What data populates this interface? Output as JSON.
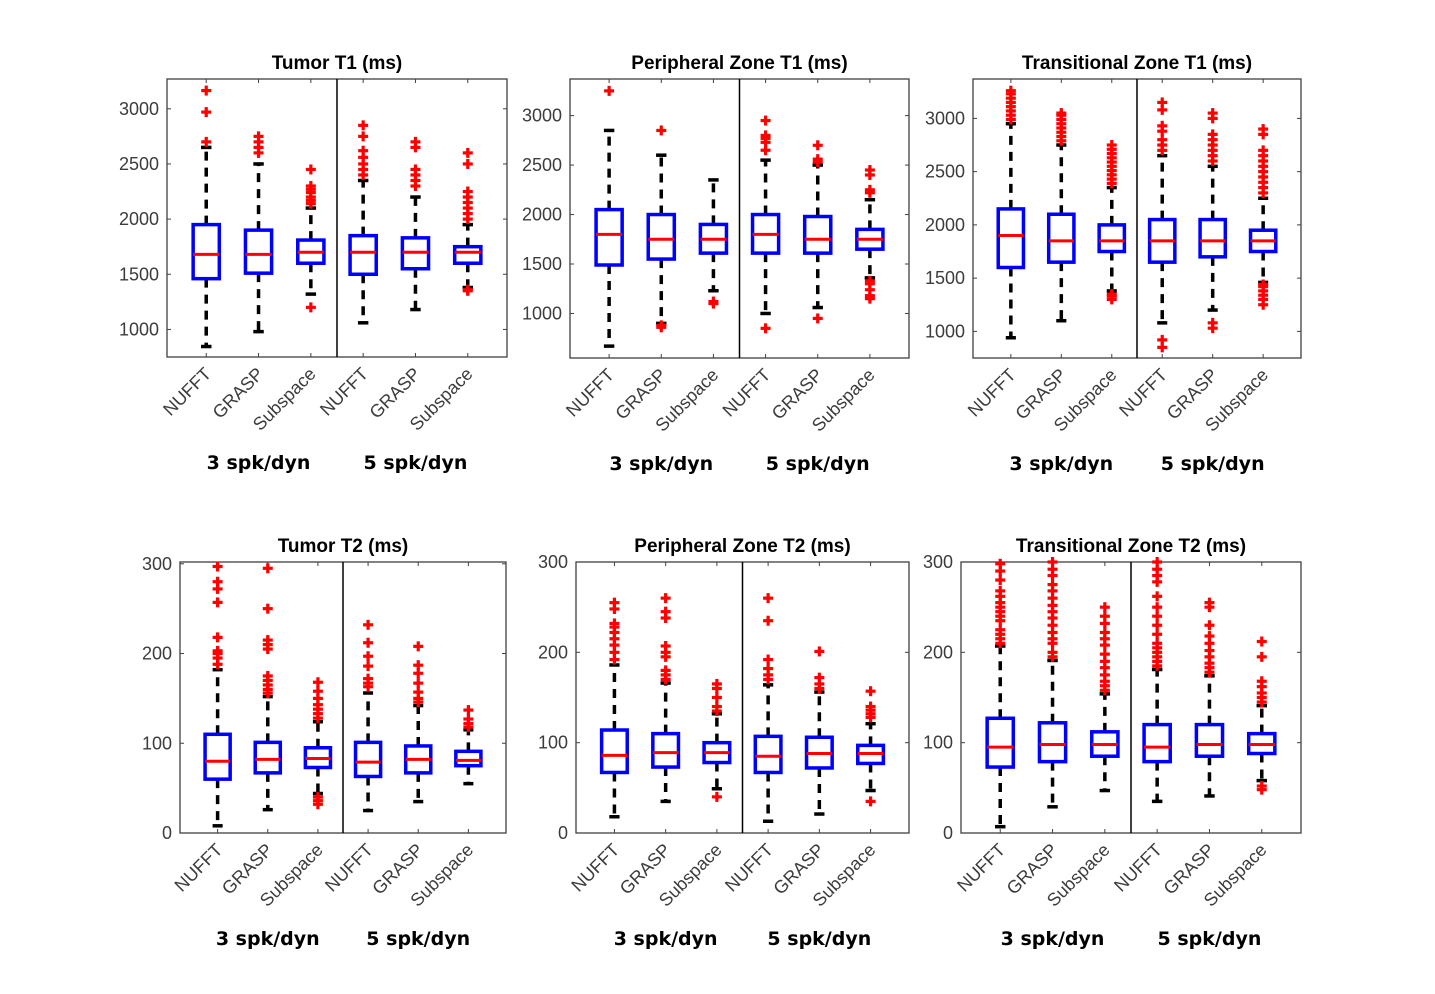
{
  "chart_data": [
    {
      "type": "box",
      "title": "Tumor T1 (ms)",
      "xlabel": "",
      "ylabel": "",
      "ylim": [
        750,
        3270
      ],
      "yticks": [
        1000,
        1500,
        2000,
        2500,
        3000
      ],
      "categories": [
        "NUFFT",
        "GRASP",
        "Subspace",
        "NUFFT",
        "GRASP",
        "Subspace"
      ],
      "groups": [
        "3 spk/dyn",
        "5 spk/dyn"
      ],
      "boxes": [
        {
          "group": "3 spk/dyn",
          "method": "NUFFT",
          "whisker_low": 845,
          "q1": 1460,
          "median": 1680,
          "q3": 1950,
          "whisker_high": 2650,
          "outliers": [
            2700,
            2970,
            3165
          ]
        },
        {
          "group": "3 spk/dyn",
          "method": "GRASP",
          "whisker_low": 980,
          "q1": 1510,
          "median": 1680,
          "q3": 1900,
          "whisker_high": 2500,
          "outliers": [
            2600,
            2650,
            2700,
            2750
          ]
        },
        {
          "group": "3 spk/dyn",
          "method": "Subspace",
          "whisker_low": 1320,
          "q1": 1600,
          "median": 1700,
          "q3": 1810,
          "whisker_high": 2100,
          "outliers": [
            1200,
            2140,
            2170,
            2200,
            2240,
            2270,
            2300,
            2450
          ]
        },
        {
          "group": "5 spk/dyn",
          "method": "NUFFT",
          "whisker_low": 1060,
          "q1": 1500,
          "median": 1700,
          "q3": 1850,
          "whisker_high": 2350,
          "outliers": [
            2400,
            2450,
            2500,
            2560,
            2620,
            2750,
            2850
          ]
        },
        {
          "group": "5 spk/dyn",
          "method": "GRASP",
          "whisker_low": 1180,
          "q1": 1550,
          "median": 1700,
          "q3": 1830,
          "whisker_high": 2200,
          "outliers": [
            2300,
            2350,
            2400,
            2450,
            2650,
            2700
          ]
        },
        {
          "group": "5 spk/dyn",
          "method": "Subspace",
          "whisker_low": 1380,
          "q1": 1600,
          "median": 1700,
          "q3": 1750,
          "whisker_high": 1950,
          "outliers": [
            1350,
            1360,
            2000,
            2050,
            2100,
            2150,
            2200,
            2250,
            2500,
            2600
          ]
        }
      ]
    },
    {
      "type": "box",
      "title": "Peripheral Zone T1 (ms)",
      "xlabel": "",
      "ylabel": "",
      "ylim": [
        550,
        3370
      ],
      "yticks": [
        1000,
        1500,
        2000,
        2500,
        3000
      ],
      "categories": [
        "NUFFT",
        "GRASP",
        "Subspace",
        "NUFFT",
        "GRASP",
        "Subspace"
      ],
      "groups": [
        "3 spk/dyn",
        "5 spk/dyn"
      ],
      "boxes": [
        {
          "group": "3 spk/dyn",
          "method": "NUFFT",
          "whisker_low": 670,
          "q1": 1490,
          "median": 1800,
          "q3": 2050,
          "whisker_high": 2850,
          "outliers": [
            3250
          ]
        },
        {
          "group": "3 spk/dyn",
          "method": "GRASP",
          "whisker_low": 900,
          "q1": 1550,
          "median": 1750,
          "q3": 2000,
          "whisker_high": 2600,
          "outliers": [
            860,
            880,
            2850
          ]
        },
        {
          "group": "3 spk/dyn",
          "method": "Subspace",
          "whisker_low": 1230,
          "q1": 1610,
          "median": 1750,
          "q3": 1900,
          "whisker_high": 2350,
          "outliers": [
            1100,
            1120
          ]
        },
        {
          "group": "5 spk/dyn",
          "method": "NUFFT",
          "whisker_low": 1000,
          "q1": 1610,
          "median": 1800,
          "q3": 2000,
          "whisker_high": 2550,
          "outliers": [
            850,
            2650,
            2730,
            2770,
            2800,
            2950
          ]
        },
        {
          "group": "5 spk/dyn",
          "method": "GRASP",
          "whisker_low": 1060,
          "q1": 1610,
          "median": 1750,
          "q3": 1980,
          "whisker_high": 2500,
          "outliers": [
            950,
            2530,
            2560,
            2700
          ]
        },
        {
          "group": "5 spk/dyn",
          "method": "Subspace",
          "whisker_low": 1360,
          "q1": 1650,
          "median": 1750,
          "q3": 1850,
          "whisker_high": 2150,
          "outliers": [
            1150,
            1180,
            1240,
            1300,
            1330,
            2220,
            2250,
            2400,
            2450
          ]
        }
      ]
    },
    {
      "type": "box",
      "title": "Transitional Zone T1 (ms)",
      "xlabel": "",
      "ylabel": "",
      "ylim": [
        750,
        3370
      ],
      "yticks": [
        1000,
        1500,
        2000,
        2500,
        3000
      ],
      "categories": [
        "NUFFT",
        "GRASP",
        "Subspace",
        "NUFFT",
        "GRASP",
        "Subspace"
      ],
      "groups": [
        "3 spk/dyn",
        "5 spk/dyn"
      ],
      "boxes": [
        {
          "group": "3 spk/dyn",
          "method": "NUFFT",
          "whisker_low": 940,
          "q1": 1600,
          "median": 1900,
          "q3": 2150,
          "whisker_high": 2950,
          "outliers": [
            2990,
            3030,
            3070,
            3110,
            3150,
            3190,
            3230,
            3260
          ]
        },
        {
          "group": "3 spk/dyn",
          "method": "GRASP",
          "whisker_low": 1100,
          "q1": 1650,
          "median": 1850,
          "q3": 2100,
          "whisker_high": 2750,
          "outliers": [
            2790,
            2830,
            2870,
            2910,
            2950,
            2990,
            3030,
            3050
          ]
        },
        {
          "group": "3 spk/dyn",
          "method": "Subspace",
          "whisker_low": 1380,
          "q1": 1750,
          "median": 1850,
          "q3": 2000,
          "whisker_high": 2350,
          "outliers": [
            1300,
            1330,
            1350,
            2390,
            2430,
            2470,
            2510,
            2550,
            2590,
            2630,
            2670,
            2710,
            2750
          ]
        },
        {
          "group": "5 spk/dyn",
          "method": "NUFFT",
          "whisker_low": 1080,
          "q1": 1650,
          "median": 1850,
          "q3": 2050,
          "whisker_high": 2650,
          "outliers": [
            850,
            920,
            2700,
            2750,
            2800,
            2880,
            2930,
            3080,
            3150
          ]
        },
        {
          "group": "5 spk/dyn",
          "method": "GRASP",
          "whisker_low": 1200,
          "q1": 1700,
          "median": 1850,
          "q3": 2050,
          "whisker_high": 2550,
          "outliers": [
            1030,
            1080,
            2600,
            2650,
            2700,
            2750,
            2800,
            2850,
            3000,
            3050
          ]
        },
        {
          "group": "5 spk/dyn",
          "method": "Subspace",
          "whisker_low": 1460,
          "q1": 1750,
          "median": 1850,
          "q3": 1950,
          "whisker_high": 2250,
          "outliers": [
            1250,
            1300,
            1340,
            1380,
            1420,
            1440,
            2300,
            2350,
            2400,
            2450,
            2500,
            2550,
            2600,
            2650,
            2700,
            2850,
            2900
          ]
        }
      ]
    },
    {
      "type": "box",
      "title": "Tumor T2 (ms)",
      "xlabel": "",
      "ylabel": "",
      "ylim": [
        0,
        302
      ],
      "yticks": [
        0,
        100,
        200,
        300
      ],
      "categories": [
        "NUFFT",
        "GRASP",
        "Subspace",
        "NUFFT",
        "GRASP",
        "Subspace"
      ],
      "groups": [
        "3 spk/dyn",
        "5 spk/dyn"
      ],
      "boxes": [
        {
          "group": "3 spk/dyn",
          "method": "NUFFT",
          "whisker_low": 8,
          "q1": 60,
          "median": 80,
          "q3": 110,
          "whisker_high": 182,
          "outliers": [
            188,
            195,
            200,
            203,
            218,
            257,
            272,
            280,
            297
          ]
        },
        {
          "group": "3 spk/dyn",
          "method": "GRASP",
          "whisker_low": 26,
          "q1": 67,
          "median": 82,
          "q3": 101,
          "whisker_high": 152,
          "outliers": [
            156,
            160,
            165,
            170,
            175,
            205,
            210,
            215,
            250,
            295
          ]
        },
        {
          "group": "3 spk/dyn",
          "method": "Subspace",
          "whisker_low": 44,
          "q1": 73,
          "median": 83,
          "q3": 95,
          "whisker_high": 124,
          "outliers": [
            32,
            36,
            40,
            128,
            133,
            138,
            143,
            150,
            158,
            168
          ]
        },
        {
          "group": "5 spk/dyn",
          "method": "NUFFT",
          "whisker_low": 25,
          "q1": 63,
          "median": 79,
          "q3": 101,
          "whisker_high": 156,
          "outliers": [
            163,
            167,
            172,
            186,
            197,
            212,
            232
          ]
        },
        {
          "group": "5 spk/dyn",
          "method": "GRASP",
          "whisker_low": 35,
          "q1": 67,
          "median": 82,
          "q3": 97,
          "whisker_high": 142,
          "outliers": [
            146,
            150,
            157,
            167,
            178,
            187,
            208
          ]
        },
        {
          "group": "5 spk/dyn",
          "method": "Subspace",
          "whisker_low": 55,
          "q1": 75,
          "median": 81,
          "q3": 91,
          "whisker_high": 115,
          "outliers": [
            118,
            122,
            127,
            137
          ]
        }
      ]
    },
    {
      "type": "box",
      "title": "Peripheral Zone T2 (ms)",
      "xlabel": "",
      "ylabel": "",
      "ylim": [
        0,
        300
      ],
      "yticks": [
        0,
        100,
        200,
        300
      ],
      "categories": [
        "NUFFT",
        "GRASP",
        "Subspace",
        "NUFFT",
        "GRASP",
        "Subspace"
      ],
      "groups": [
        "3 spk/dyn",
        "5 spk/dyn"
      ],
      "boxes": [
        {
          "group": "3 spk/dyn",
          "method": "NUFFT",
          "whisker_low": 18,
          "q1": 67,
          "median": 86,
          "q3": 114,
          "whisker_high": 186,
          "outliers": [
            192,
            200,
            208,
            215,
            222,
            228,
            232,
            248,
            255
          ]
        },
        {
          "group": "3 spk/dyn",
          "method": "GRASP",
          "whisker_low": 35,
          "q1": 73,
          "median": 89,
          "q3": 110,
          "whisker_high": 166,
          "outliers": [
            170,
            175,
            180,
            195,
            200,
            207,
            238,
            245,
            260
          ]
        },
        {
          "group": "3 spk/dyn",
          "method": "Subspace",
          "whisker_low": 49,
          "q1": 78,
          "median": 89,
          "q3": 100,
          "whisker_high": 132,
          "outliers": [
            40,
            135,
            140,
            150,
            160,
            165
          ]
        },
        {
          "group": "5 spk/dyn",
          "method": "NUFFT",
          "whisker_low": 13,
          "q1": 67,
          "median": 85,
          "q3": 107,
          "whisker_high": 164,
          "outliers": [
            170,
            175,
            182,
            192,
            235,
            260
          ]
        },
        {
          "group": "5 spk/dyn",
          "method": "GRASP",
          "whisker_low": 21,
          "q1": 72,
          "median": 88,
          "q3": 106,
          "whisker_high": 156,
          "outliers": [
            160,
            165,
            172,
            201
          ]
        },
        {
          "group": "5 spk/dyn",
          "method": "Subspace",
          "whisker_low": 47,
          "q1": 77,
          "median": 88,
          "q3": 97,
          "whisker_high": 121,
          "outliers": [
            35,
            128,
            132,
            136,
            140,
            157
          ]
        }
      ]
    },
    {
      "type": "box",
      "title": "Transitional Zone T2 (ms)",
      "xlabel": "",
      "ylabel": "",
      "ylim": [
        0,
        300
      ],
      "yticks": [
        0,
        100,
        200,
        300
      ],
      "categories": [
        "NUFFT",
        "GRASP",
        "Subspace",
        "NUFFT",
        "GRASP",
        "Subspace"
      ],
      "groups": [
        "3 spk/dyn",
        "5 spk/dyn"
      ],
      "boxes": [
        {
          "group": "3 spk/dyn",
          "method": "NUFFT",
          "whisker_low": 7,
          "q1": 73,
          "median": 95,
          "q3": 127,
          "whisker_high": 207,
          "outliers": [
            210,
            215,
            220,
            225,
            235,
            240,
            245,
            250,
            255,
            262,
            268,
            280,
            290,
            298
          ]
        },
        {
          "group": "3 spk/dyn",
          "method": "GRASP",
          "whisker_low": 29,
          "q1": 79,
          "median": 98,
          "q3": 122,
          "whisker_high": 191,
          "outliers": [
            195,
            200,
            210,
            215,
            222,
            230,
            238,
            245,
            252,
            260,
            268,
            275,
            285,
            292,
            300
          ]
        },
        {
          "group": "3 spk/dyn",
          "method": "Subspace",
          "whisker_low": 47,
          "q1": 85,
          "median": 98,
          "q3": 112,
          "whisker_high": 154,
          "outliers": [
            158,
            163,
            168,
            175,
            183,
            190,
            198,
            208,
            215,
            222,
            232,
            240,
            250
          ]
        },
        {
          "group": "5 spk/dyn",
          "method": "NUFFT",
          "whisker_low": 35,
          "q1": 79,
          "median": 95,
          "q3": 120,
          "whisker_high": 181,
          "outliers": [
            185,
            190,
            195,
            200,
            205,
            210,
            220,
            230,
            240,
            250,
            262,
            278,
            285,
            292,
            300
          ]
        },
        {
          "group": "5 spk/dyn",
          "method": "GRASP",
          "whisker_low": 41,
          "q1": 85,
          "median": 98,
          "q3": 120,
          "whisker_high": 174,
          "outliers": [
            178,
            183,
            188,
            195,
            202,
            210,
            218,
            230,
            250,
            255
          ]
        },
        {
          "group": "5 spk/dyn",
          "method": "Subspace",
          "whisker_low": 58,
          "q1": 88,
          "median": 98,
          "q3": 110,
          "whisker_high": 141,
          "outliers": [
            48,
            52,
            145,
            150,
            155,
            162,
            168,
            195,
            212
          ]
        }
      ]
    }
  ],
  "colors": {
    "box": "#0000ff",
    "median": "#ff0000",
    "outlier": "#ff0000",
    "whisker": "#000000",
    "axis": "#404040",
    "separator": "#000000"
  }
}
